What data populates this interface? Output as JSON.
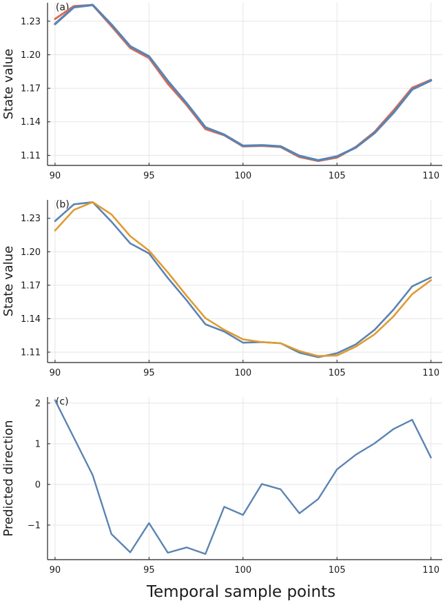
{
  "figure": {
    "xlabel": "Temporal sample points"
  },
  "colors": {
    "blue": "#5b83b2",
    "red": "#e06c50",
    "orange": "#e09a30"
  },
  "chart_data": [
    {
      "type": "line",
      "panel": "(a)",
      "ylabel": "State value",
      "xlabel": "",
      "xlim": [
        89.6,
        110.6
      ],
      "ylim": [
        1.101,
        1.2465
      ],
      "xticks": [
        90,
        95,
        100,
        105,
        110
      ],
      "yticks": [
        1.11,
        1.14,
        1.17,
        1.2,
        1.23
      ],
      "ytick_labels": [
        "1.11",
        "1.14",
        "1.17",
        "1.20",
        "1.23"
      ],
      "grid": true,
      "x": [
        90,
        91,
        92,
        93,
        94,
        95,
        96,
        97,
        98,
        99,
        100,
        101,
        102,
        103,
        104,
        105,
        106,
        107,
        108,
        109,
        110
      ],
      "series": [
        {
          "color": "#e06c50",
          "width": 3,
          "values": [
            1.232,
            1.2435,
            1.2445,
            1.2255,
            1.206,
            1.197,
            1.174,
            1.155,
            1.1335,
            1.128,
            1.118,
            1.1185,
            1.1175,
            1.1085,
            1.105,
            1.108,
            1.1175,
            1.131,
            1.15,
            1.1705,
            1.1775
          ]
        },
        {
          "color": "#5b83b2",
          "width": 3.4,
          "values": [
            1.2275,
            1.2425,
            1.2445,
            1.227,
            1.2075,
            1.1985,
            1.1765,
            1.1565,
            1.135,
            1.1285,
            1.1185,
            1.119,
            1.118,
            1.1095,
            1.1055,
            1.109,
            1.117,
            1.13,
            1.148,
            1.169,
            1.177
          ]
        }
      ]
    },
    {
      "type": "line",
      "panel": "(b)",
      "ylabel": "State value",
      "xlabel": "",
      "xlim": [
        89.6,
        110.6
      ],
      "ylim": [
        1.1007,
        1.2465
      ],
      "xticks": [
        90,
        95,
        100,
        105,
        110
      ],
      "yticks": [
        1.11,
        1.14,
        1.17,
        1.2,
        1.23
      ],
      "ytick_labels": [
        "1.11",
        "1.14",
        "1.17",
        "1.20",
        "1.23"
      ],
      "grid": true,
      "x": [
        90,
        91,
        92,
        93,
        94,
        95,
        96,
        97,
        98,
        99,
        100,
        101,
        102,
        103,
        104,
        105,
        106,
        107,
        108,
        109,
        110
      ],
      "series": [
        {
          "color": "#5b83b2",
          "width": 2.6,
          "values": [
            1.2275,
            1.2425,
            1.2445,
            1.227,
            1.2075,
            1.1985,
            1.1765,
            1.1565,
            1.135,
            1.1285,
            1.1185,
            1.119,
            1.118,
            1.1095,
            1.1055,
            1.109,
            1.117,
            1.13,
            1.148,
            1.169,
            1.177
          ]
        },
        {
          "color": "#e09a30",
          "width": 2.6,
          "values": [
            1.219,
            1.2375,
            1.2445,
            1.2335,
            1.214,
            1.201,
            1.1815,
            1.1605,
            1.1405,
            1.13,
            1.1215,
            1.119,
            1.118,
            1.111,
            1.1065,
            1.107,
            1.115,
            1.126,
            1.142,
            1.162,
            1.1745
          ]
        }
      ]
    },
    {
      "type": "line",
      "panel": "(c)",
      "ylabel": "Predicted direction",
      "xlabel": "",
      "xlim": [
        89.6,
        110.6
      ],
      "ylim": [
        -1.85,
        2.15
      ],
      "xticks": [
        90,
        95,
        100,
        105,
        110
      ],
      "yticks": [
        -1,
        0,
        1,
        2
      ],
      "ytick_labels": [
        "−1",
        "0",
        "1",
        "2"
      ],
      "grid": true,
      "x": [
        90,
        91,
        92,
        93,
        94,
        95,
        96,
        97,
        98,
        99,
        100,
        101,
        102,
        103,
        104,
        105,
        106,
        107,
        108,
        109,
        110
      ],
      "series": [
        {
          "color": "#5b83b2",
          "width": 2.4,
          "values": [
            2.07,
            1.15,
            0.23,
            -1.22,
            -1.67,
            -0.95,
            -1.68,
            -1.55,
            -1.71,
            -0.55,
            -0.75,
            0.01,
            -0.12,
            -0.71,
            -0.36,
            0.37,
            0.73,
            1.01,
            1.36,
            1.59,
            0.66
          ]
        }
      ]
    }
  ]
}
